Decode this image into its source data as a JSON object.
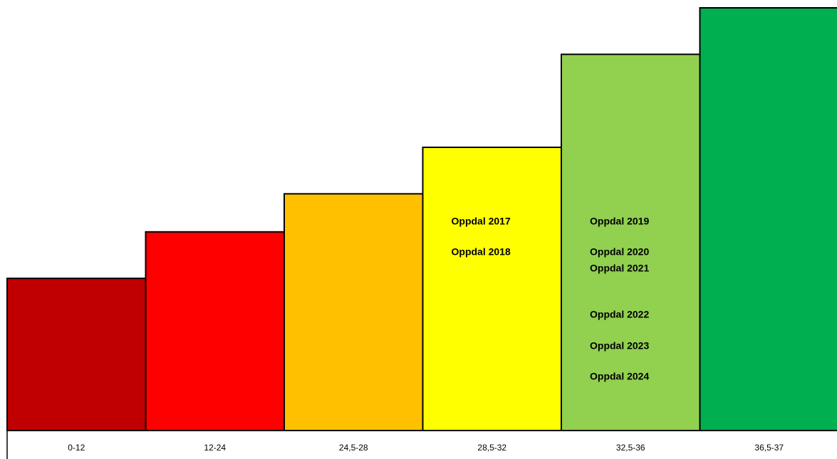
{
  "chart_data": {
    "type": "bar",
    "categories": [
      "0-12",
      "12-24",
      "24,5-28",
      "28,5-32",
      "32,5-36",
      "36,5-37"
    ],
    "values": [
      36,
      47,
      56,
      67,
      89,
      100
    ],
    "colors": [
      "#c00000",
      "#ff0000",
      "#ffc000",
      "#ffff00",
      "#92d050",
      "#00b050"
    ],
    "ylim": [
      0,
      100
    ],
    "annotations": [
      [],
      [],
      [],
      [
        "Oppdal 2017",
        "Oppdal 2018"
      ],
      [
        "Oppdal 2019",
        "Oppdal 2020",
        "Oppdal 2021",
        "Oppdal 2022",
        "Oppdal 2023",
        "Oppdal 2024"
      ],
      []
    ]
  }
}
